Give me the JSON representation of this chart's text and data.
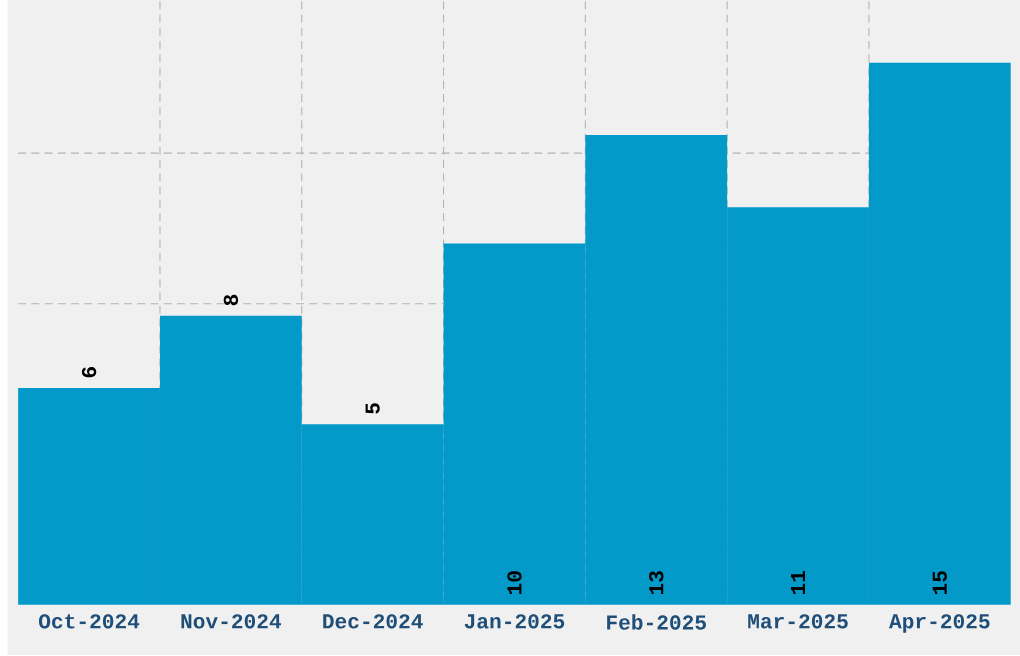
{
  "chart_data": {
    "type": "bar",
    "categories": [
      "Oct-2024",
      "Nov-2024",
      "Dec-2024",
      "Jan-2025",
      "Feb-2025",
      "Mar-2025",
      "Apr-2025"
    ],
    "values": [
      6,
      8,
      5,
      10,
      13,
      11,
      15
    ],
    "color": "#0399c9",
    "ylim": [
      0,
      16.7
    ],
    "yticks": [
      {
        "value": 4.17,
        "label": null
      },
      {
        "value": 8.33,
        "label": null
      },
      {
        "value": 12.5,
        "label": null
      }
    ],
    "tick_labels": "x",
    "data_labels": true,
    "grid": true
  }
}
